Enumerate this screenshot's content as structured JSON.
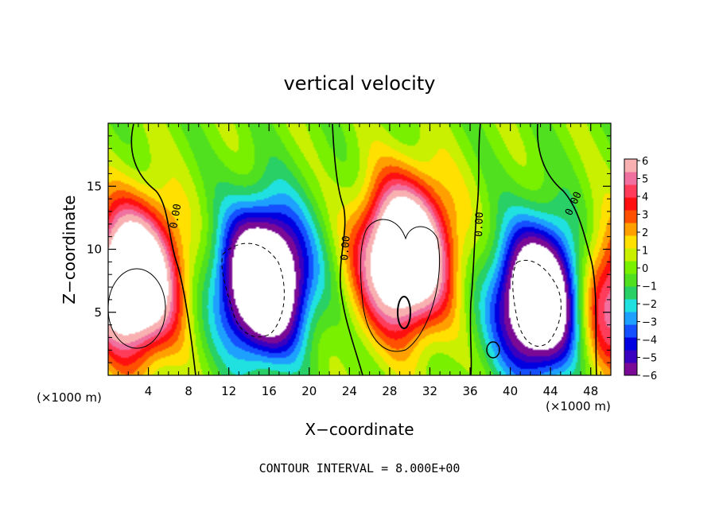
{
  "chart_data": {
    "type": "heatmap",
    "title": "vertical velocity",
    "xlabel": "X−coordinate",
    "ylabel": "Z−coordinate",
    "x_unit_left": "(×1000 m)",
    "x_unit_right": "(×1000 m)",
    "footer": "CONTOUR INTERVAL = 8.000E+00",
    "xlim": [
      0,
      50
    ],
    "ylim": [
      0,
      20
    ],
    "x_ticks": [
      "4",
      "8",
      "12",
      "16",
      "20",
      "24",
      "28",
      "32",
      "36",
      "40",
      "44",
      "48"
    ],
    "y_ticks": [
      "5",
      "10",
      "15"
    ],
    "colorbar": {
      "ticks": [
        "6",
        "5",
        "4",
        "3",
        "2",
        "1",
        "0",
        "−1",
        "−2",
        "−3",
        "−4",
        "−5",
        "−6"
      ],
      "range": [
        -6,
        6
      ],
      "colors": [
        "#7a0a96",
        "#3a00c0",
        "#0000e0",
        "#1450ff",
        "#1ea0ff",
        "#20e0e0",
        "#28d066",
        "#50e020",
        "#78f000",
        "#c8f000",
        "#ffe000",
        "#ffa000",
        "#ff5000",
        "#ff1010",
        "#ff3c5a",
        "#f070a0",
        "#f8b0b0"
      ]
    },
    "contour_labels": [
      "0.00",
      "0.00",
      "0.00",
      "0.00"
    ],
    "features": [
      {
        "x": 2.5,
        "z": 7.5,
        "w": 8,
        "kind": "updraft"
      },
      {
        "x": 15.5,
        "z": 7.5,
        "w": -8,
        "kind": "downdraft"
      },
      {
        "x": 29.5,
        "z": 9.5,
        "w": 8,
        "kind": "updraft"
      },
      {
        "x": 43,
        "z": 6,
        "w": -8,
        "kind": "downdraft"
      },
      {
        "x": 50,
        "z": 6,
        "w": 4,
        "kind": "updraft"
      }
    ]
  }
}
